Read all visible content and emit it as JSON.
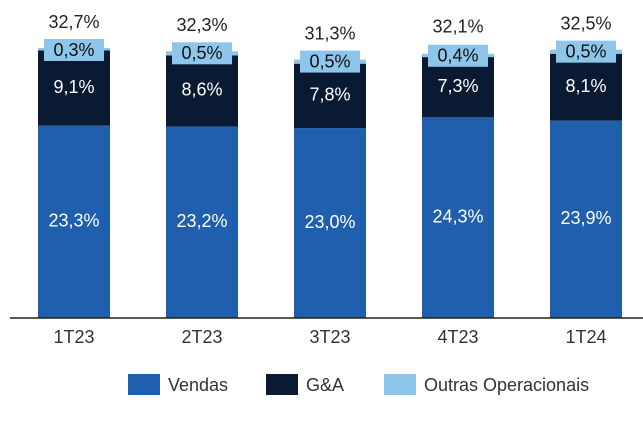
{
  "chart_data": {
    "type": "stacked-bar",
    "categories": [
      "1T23",
      "2T23",
      "3T23",
      "4T23",
      "1T24"
    ],
    "series": [
      {
        "name": "Vendas",
        "color": "#1f5fae",
        "values": [
          23.3,
          23.2,
          23.0,
          24.3,
          23.9
        ],
        "value_labels": [
          "23,3%",
          "23,2%",
          "23,0%",
          "24,3%",
          "23,9%"
        ]
      },
      {
        "name": "G&A",
        "color": "#0b1a33",
        "values": [
          9.1,
          8.6,
          7.8,
          7.3,
          8.1
        ],
        "value_labels": [
          "9,1%",
          "8,6%",
          "7,8%",
          "7,3%",
          "8,1%"
        ]
      },
      {
        "name": "Outras Operacionais",
        "color": "#8ec5ea",
        "values": [
          0.3,
          0.5,
          0.5,
          0.4,
          0.5
        ],
        "value_labels": [
          "0,3%",
          "0,5%",
          "0,5%",
          "0,4%",
          "0,5%"
        ]
      }
    ],
    "totals": [
      32.7,
      32.3,
      31.3,
      32.1,
      32.5
    ],
    "total_labels": [
      "32,7%",
      "32,3%",
      "31,3%",
      "32,1%",
      "32,5%"
    ],
    "legend": "bottom"
  }
}
